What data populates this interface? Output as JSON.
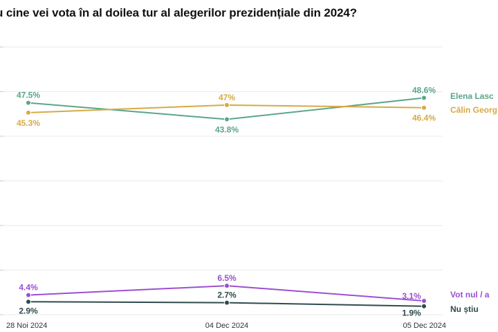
{
  "chart_data": {
    "type": "line",
    "title": "u cine vei vota în al doilea tur al alegerilor prezidențiale din 2024?",
    "categories": [
      "28 Noi 2024",
      "04 Dec 2024",
      "05 Dec 2024"
    ],
    "ylim": [
      0,
      60
    ],
    "grid": true,
    "legend": "right, inline labels at line ends",
    "series": [
      {
        "name": "Elena Lasc",
        "color": "#5aa58a",
        "values": [
          47.5,
          43.8,
          48.6
        ],
        "labels": [
          "47.5%",
          "43.8%",
          "48.6%"
        ]
      },
      {
        "name": "Călin Georg",
        "color": "#d6aa45",
        "values": [
          45.3,
          47,
          46.4
        ],
        "labels": [
          "45.3%",
          "47%",
          "46.4%"
        ]
      },
      {
        "name": "Vot nul / a",
        "color": "#9b4fd1",
        "values": [
          4.4,
          6.5,
          3.1
        ],
        "labels": [
          "4.4%",
          "6.5%",
          "3.1%"
        ]
      },
      {
        "name": "Nu știu",
        "color": "#2f4a4c",
        "values": [
          2.9,
          2.7,
          1.9
        ],
        "labels": [
          "2.9%",
          "2.7%",
          "1.9%"
        ]
      }
    ]
  }
}
